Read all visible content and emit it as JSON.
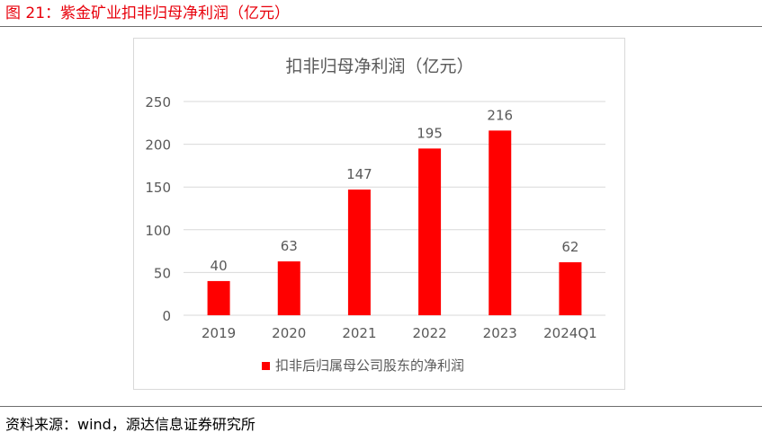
{
  "figure": {
    "title": "图 21：紫金矿业扣非归母净利润（亿元）",
    "source": "资料来源：wind，源达信息证券研究所"
  },
  "colors": {
    "title": "#e8000b",
    "bar": "#ff0000",
    "grid": "#d9d9d9",
    "text": "#595959"
  },
  "chart_data": {
    "type": "bar",
    "title": "扣非归母净利润（亿元）",
    "categories": [
      "2019",
      "2020",
      "2021",
      "2022",
      "2023",
      "2024Q1"
    ],
    "series": [
      {
        "name": "扣非后归属母公司股东的净利润",
        "values": [
          40,
          63,
          147,
          195,
          216,
          62
        ]
      }
    ],
    "data_labels": [
      "40",
      "63",
      "147",
      "195",
      "216",
      "62"
    ],
    "ylim": [
      0,
      250
    ],
    "yticks": [
      0,
      50,
      100,
      150,
      200,
      250
    ],
    "ytick_labels": [
      "0",
      "50",
      "100",
      "150",
      "200",
      "250"
    ],
    "xlabel": "",
    "ylabel": "",
    "grid": true,
    "legend_position": "bottom"
  }
}
